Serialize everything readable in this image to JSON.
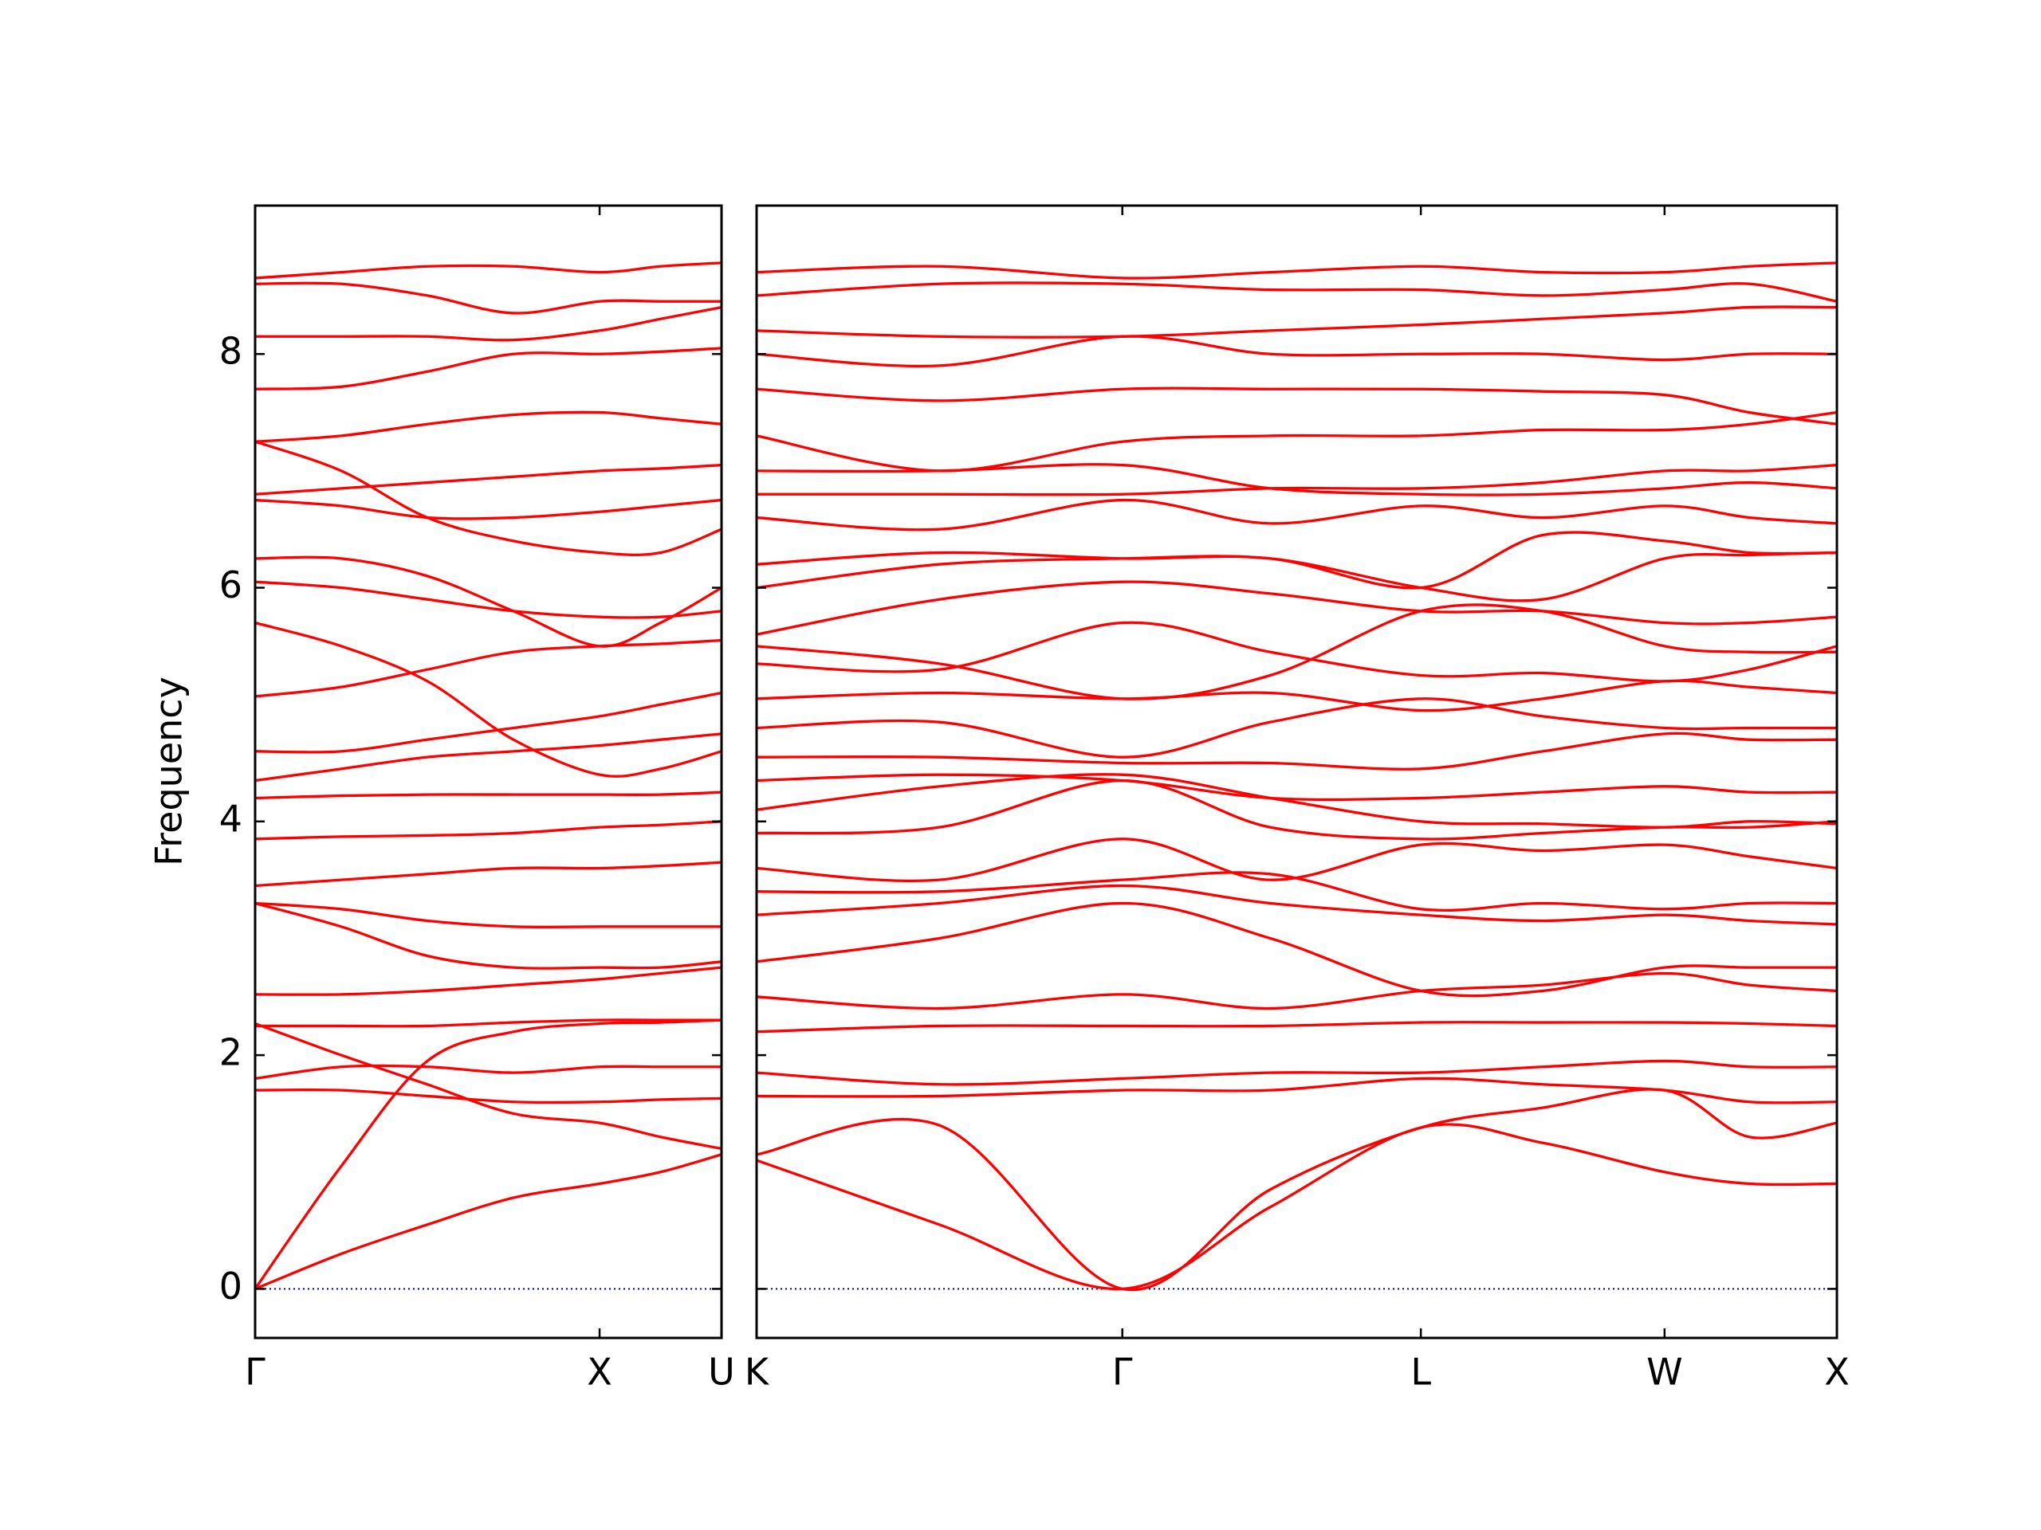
{
  "chart_data": [
    {
      "type": "line",
      "color": "#ff0000",
      "ylabel": "Frequency",
      "show_ytick_labels": true,
      "hline": {
        "y": 0,
        "color": "#00008b"
      },
      "x": [
        0,
        0.25,
        0.5,
        0.75,
        1.0,
        1.177,
        1.354
      ],
      "xlim": [
        0,
        1.354
      ],
      "xticks": [
        {
          "value": 0,
          "label": "Γ"
        },
        {
          "value": 1.0,
          "label": "X"
        },
        {
          "value": 1.354,
          "label": "U"
        }
      ],
      "ylim": [
        -0.42,
        9.27
      ],
      "yticks": [
        0,
        2,
        4,
        6,
        8
      ],
      "series": [
        {
          "values": [
            0,
            0.3,
            0.55,
            0.78,
            0.9,
            1.0,
            1.15
          ]
        },
        {
          "values": [
            0,
            1.05,
            1.95,
            2.2,
            2.27,
            2.28,
            2.3
          ]
        },
        {
          "values": [
            1.7,
            1.7,
            1.65,
            1.6,
            1.6,
            1.62,
            1.63
          ]
        },
        {
          "values": [
            1.8,
            1.9,
            1.9,
            1.85,
            1.9,
            1.9,
            1.9
          ]
        },
        {
          "values": [
            2.25,
            2.25,
            2.25,
            2.28,
            2.3,
            2.3,
            2.3
          ]
        },
        {
          "values": [
            2.52,
            2.52,
            2.55,
            2.6,
            2.65,
            2.7,
            2.75
          ]
        },
        {
          "values": [
            3.3,
            3.25,
            3.15,
            3.1,
            3.1,
            3.1,
            3.1
          ]
        },
        {
          "values": [
            3.45,
            3.5,
            3.55,
            3.6,
            3.6,
            3.62,
            3.65
          ]
        },
        {
          "values": [
            3.85,
            3.87,
            3.88,
            3.9,
            3.95,
            3.97,
            4.0
          ]
        },
        {
          "values": [
            4.2,
            4.22,
            4.23,
            4.23,
            4.23,
            4.23,
            4.25
          ]
        },
        {
          "values": [
            4.35,
            4.45,
            4.55,
            4.6,
            4.65,
            4.7,
            4.75
          ]
        },
        {
          "values": [
            4.6,
            4.6,
            4.7,
            4.8,
            4.9,
            5.0,
            5.1
          ]
        },
        {
          "values": [
            5.07,
            5.15,
            5.3,
            5.45,
            5.5,
            5.52,
            5.55
          ]
        },
        {
          "values": [
            5.7,
            5.5,
            5.2,
            4.7,
            4.4,
            4.45,
            4.6
          ]
        },
        {
          "values": [
            6.05,
            6.0,
            5.9,
            5.8,
            5.75,
            5.75,
            5.8
          ]
        },
        {
          "values": [
            6.25,
            6.25,
            6.1,
            5.8,
            5.5,
            5.7,
            6.0
          ]
        },
        {
          "values": [
            6.75,
            6.7,
            6.6,
            6.6,
            6.65,
            6.7,
            6.75
          ]
        },
        {
          "values": [
            6.8,
            6.85,
            6.9,
            6.95,
            7.0,
            7.02,
            7.05
          ]
        },
        {
          "values": [
            7.25,
            7.0,
            6.6,
            6.4,
            6.3,
            6.3,
            6.5
          ]
        },
        {
          "values": [
            7.25,
            7.3,
            7.4,
            7.48,
            7.5,
            7.45,
            7.4
          ]
        },
        {
          "values": [
            7.7,
            7.72,
            7.85,
            8.0,
            8.0,
            8.02,
            8.05
          ]
        },
        {
          "values": [
            8.15,
            8.15,
            8.15,
            8.12,
            8.2,
            8.3,
            8.4
          ]
        },
        {
          "values": [
            8.6,
            8.6,
            8.5,
            8.35,
            8.45,
            8.45,
            8.45
          ]
        },
        {
          "values": [
            8.65,
            8.7,
            8.75,
            8.75,
            8.7,
            8.75,
            8.78
          ]
        },
        {
          "values": [
            3.3,
            3.1,
            2.85,
            2.75,
            2.75,
            2.75,
            2.8
          ]
        },
        {
          "values": [
            2.27,
            2.0,
            1.75,
            1.5,
            1.42,
            1.3,
            1.2
          ]
        }
      ]
    },
    {
      "type": "line",
      "color": "#ff0000",
      "show_ytick_labels": false,
      "hline": {
        "y": 0,
        "color": "#00008b"
      },
      "x": [
        0,
        0.53,
        1.061,
        1.49,
        1.927,
        2.28,
        2.634,
        2.88,
        3.134
      ],
      "xlim": [
        0,
        3.134
      ],
      "xticks": [
        {
          "value": 0,
          "label": "K"
        },
        {
          "value": 1.061,
          "label": "Γ"
        },
        {
          "value": 1.927,
          "label": "L"
        },
        {
          "value": 2.634,
          "label": "W"
        },
        {
          "value": 3.134,
          "label": "X"
        }
      ],
      "ylim": [
        -0.42,
        9.27
      ],
      "yticks": [
        0,
        2,
        4,
        6,
        8
      ],
      "series": [
        {
          "values": [
            1.1,
            0.55,
            0,
            0.7,
            1.38,
            1.25,
            1.0,
            0.9,
            0.9
          ]
        },
        {
          "values": [
            1.15,
            1.4,
            0,
            0.85,
            1.38,
            1.55,
            1.7,
            1.3,
            1.42
          ]
        },
        {
          "values": [
            1.65,
            1.65,
            1.7,
            1.7,
            1.8,
            1.75,
            1.7,
            1.6,
            1.6
          ]
        },
        {
          "values": [
            1.85,
            1.75,
            1.8,
            1.85,
            1.85,
            1.9,
            1.95,
            1.9,
            1.9
          ]
        },
        {
          "values": [
            2.2,
            2.25,
            2.25,
            2.25,
            2.28,
            2.28,
            2.28,
            2.27,
            2.25
          ]
        },
        {
          "values": [
            2.5,
            2.4,
            2.52,
            2.4,
            2.55,
            2.6,
            2.7,
            2.6,
            2.55
          ]
        },
        {
          "values": [
            2.8,
            3.0,
            3.3,
            3.0,
            2.55,
            2.55,
            2.75,
            2.75,
            2.75
          ]
        },
        {
          "values": [
            3.2,
            3.3,
            3.45,
            3.3,
            3.2,
            3.15,
            3.2,
            3.15,
            3.12
          ]
        },
        {
          "values": [
            3.4,
            3.4,
            3.5,
            3.55,
            3.25,
            3.3,
            3.25,
            3.3,
            3.3
          ]
        },
        {
          "values": [
            3.6,
            3.5,
            3.85,
            3.5,
            3.8,
            3.75,
            3.8,
            3.7,
            3.6
          ]
        },
        {
          "values": [
            3.9,
            3.95,
            4.35,
            3.95,
            3.85,
            3.9,
            3.95,
            3.95,
            4.0
          ]
        },
        {
          "values": [
            4.1,
            4.3,
            4.4,
            4.2,
            4.0,
            3.98,
            3.95,
            4.0,
            3.98
          ]
        },
        {
          "values": [
            4.35,
            4.4,
            4.35,
            4.2,
            4.2,
            4.25,
            4.3,
            4.25,
            4.25
          ]
        },
        {
          "values": [
            4.55,
            4.55,
            4.5,
            4.5,
            4.45,
            4.6,
            4.75,
            4.7,
            4.7
          ]
        },
        {
          "values": [
            4.8,
            4.85,
            4.55,
            4.85,
            5.05,
            4.9,
            4.8,
            4.8,
            4.8
          ]
        },
        {
          "values": [
            5.05,
            5.1,
            5.05,
            5.1,
            4.95,
            5.05,
            5.2,
            5.15,
            5.1
          ]
        },
        {
          "values": [
            5.35,
            5.3,
            5.7,
            5.45,
            5.25,
            5.27,
            5.2,
            5.3,
            5.5
          ]
        },
        {
          "values": [
            5.6,
            5.9,
            6.05,
            5.95,
            5.8,
            5.8,
            5.7,
            5.7,
            5.75
          ]
        },
        {
          "values": [
            6.0,
            6.2,
            6.25,
            6.25,
            6.0,
            5.9,
            6.25,
            6.28,
            6.3
          ]
        },
        {
          "values": [
            6.6,
            6.5,
            6.75,
            6.55,
            6.7,
            6.6,
            6.7,
            6.6,
            6.55
          ]
        },
        {
          "values": [
            6.8,
            6.8,
            6.8,
            6.85,
            6.85,
            6.9,
            7.0,
            7.0,
            7.05
          ]
        },
        {
          "values": [
            7.0,
            7.0,
            7.05,
            6.85,
            6.8,
            6.8,
            6.85,
            6.9,
            6.85
          ]
        },
        {
          "values": [
            7.3,
            7.0,
            7.25,
            7.3,
            7.3,
            7.35,
            7.35,
            7.4,
            7.5
          ]
        },
        {
          "values": [
            7.7,
            7.6,
            7.7,
            7.7,
            7.7,
            7.68,
            7.65,
            7.5,
            7.4
          ]
        },
        {
          "values": [
            8.0,
            7.9,
            8.15,
            8.0,
            8.0,
            8.0,
            7.95,
            8.0,
            8.0
          ]
        },
        {
          "values": [
            8.2,
            8.15,
            8.15,
            8.2,
            8.25,
            8.3,
            8.35,
            8.4,
            8.4
          ]
        },
        {
          "values": [
            8.5,
            8.6,
            8.6,
            8.55,
            8.55,
            8.5,
            8.55,
            8.6,
            8.45
          ]
        },
        {
          "values": [
            8.7,
            8.75,
            8.65,
            8.7,
            8.75,
            8.7,
            8.7,
            8.75,
            8.78
          ]
        },
        {
          "values": [
            6.2,
            6.3,
            6.25,
            6.25,
            6.0,
            6.45,
            6.4,
            6.3,
            6.3
          ]
        },
        {
          "values": [
            5.5,
            5.35,
            5.05,
            5.25,
            5.8,
            5.8,
            5.5,
            5.45,
            5.45
          ]
        }
      ]
    }
  ]
}
